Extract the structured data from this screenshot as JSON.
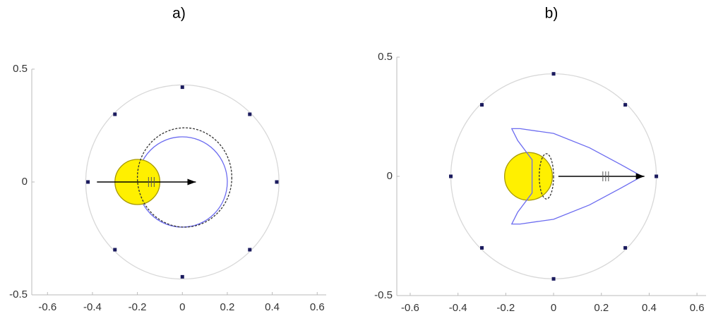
{
  "chart_data": [
    {
      "type": "scatter",
      "title": "a)",
      "xlim": [
        -0.67,
        0.64
      ],
      "ylim": [
        -0.5,
        0.5
      ],
      "xticks": [
        -0.6,
        -0.4,
        -0.2,
        0,
        0.2,
        0.4,
        0.6
      ],
      "yticks": [
        -0.5,
        0,
        0.5
      ],
      "series": [
        {
          "color": "#1b1b5e",
          "x": [
            0,
            0.3,
            0.42,
            0.3,
            0,
            -0.3,
            -0.42,
            -0.3
          ],
          "y": [
            0.42,
            0.3,
            0,
            -0.3,
            -0.42,
            -0.3,
            0,
            0.3
          ]
        }
      ],
      "circles": [
        {
          "cx": 0,
          "cy": 0,
          "rx": 0.43,
          "ry": 0.43,
          "color": "#d8d8d8",
          "fill": "none",
          "dash": false
        },
        {
          "cx": 0,
          "cy": 0,
          "rx": 0.2,
          "ry": 0.2,
          "color": "#6b6bf0",
          "fill": "none",
          "dash": false
        },
        {
          "cx": -0.2,
          "cy": 0,
          "rx": 0.1,
          "ry": 0.1,
          "color": "#a89a00",
          "fill": "#fff000",
          "dash": false
        },
        {
          "cx": 0.01,
          "cy": 0.02,
          "rx": 0.21,
          "ry": 0.22,
          "color": "#333333",
          "fill": "none",
          "dash": true
        }
      ],
      "arrow": {
        "x": [
          -0.38,
          0.06
        ],
        "y": [
          0,
          0
        ]
      }
    },
    {
      "type": "scatter",
      "title": "b)",
      "xlim": [
        -0.656,
        0.638
      ],
      "ylim": [
        -0.5,
        0.5
      ],
      "xticks": [
        -0.6,
        -0.4,
        -0.2,
        0,
        0.2,
        0.4,
        0.6
      ],
      "yticks": [
        -0.5,
        0,
        0.5
      ],
      "series": [
        {
          "color": "#1b1b5e",
          "x": [
            0,
            0.3,
            0.43,
            0.3,
            0,
            -0.3,
            -0.43,
            -0.3
          ],
          "y": [
            0.43,
            0.3,
            0,
            -0.3,
            -0.43,
            -0.3,
            0,
            0.3
          ]
        }
      ],
      "circles": [
        {
          "cx": 0,
          "cy": 0,
          "rx": 0.43,
          "ry": 0.43,
          "color": "#d8d8d8",
          "fill": "none",
          "dash": false
        },
        {
          "cx": -0.105,
          "cy": 0,
          "rx": 0.1,
          "ry": 0.1,
          "color": "#a89a00",
          "fill": "#fff000",
          "dash": false
        },
        {
          "cx": -0.03,
          "cy": 0.0,
          "rx": 0.03,
          "ry": 0.095,
          "color": "#333333",
          "fill": "none",
          "dash": true
        }
      ],
      "curve": {
        "color": "#6b6bf0",
        "x": [
          -0.09,
          -0.15,
          -0.175,
          -0.14,
          0.0,
          0.15,
          0.28,
          0.37,
          0.28,
          0.15,
          0.0,
          -0.14,
          -0.175,
          -0.15,
          -0.09
        ],
        "y": [
          0.07,
          0.15,
          0.2,
          0.2,
          0.18,
          0.12,
          0.05,
          0,
          -0.05,
          -0.12,
          -0.18,
          -0.2,
          -0.2,
          -0.15,
          -0.07
        ]
      },
      "arrow": {
        "x": [
          0.02,
          0.38
        ],
        "y": [
          0,
          0
        ]
      }
    }
  ]
}
